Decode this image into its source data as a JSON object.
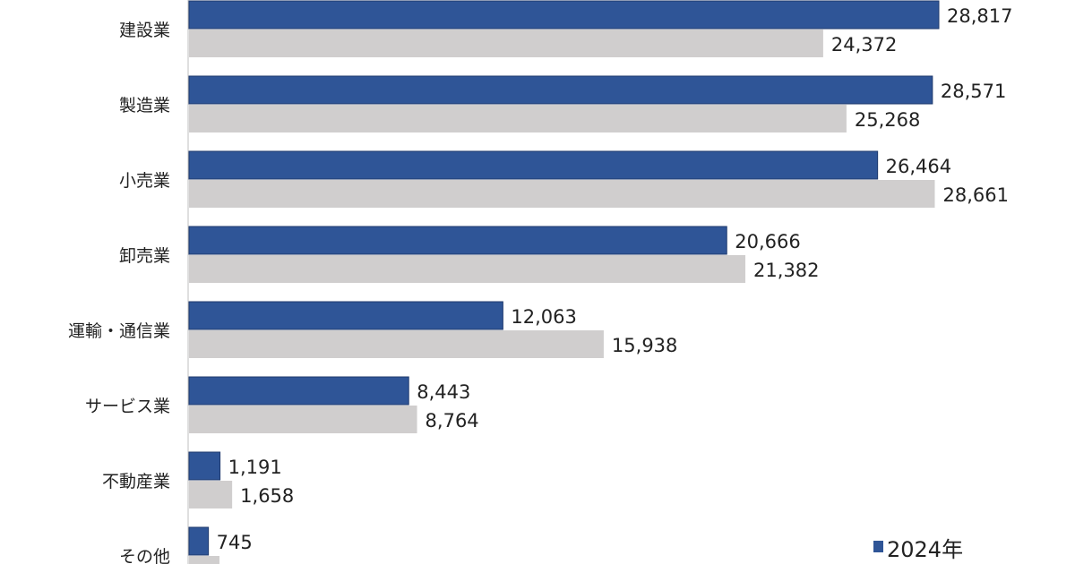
{
  "chart_data": {
    "type": "bar",
    "orientation": "horizontal",
    "categories": [
      "建設業",
      "製造業",
      "小売業",
      "卸売業",
      "運輸・通信業",
      "サービス業",
      "不動産業",
      "その他"
    ],
    "series": [
      {
        "name": "2024年",
        "color": "#2F5597",
        "values": [
          28817,
          28571,
          26464,
          20666,
          12063,
          8443,
          1191,
          745
        ]
      },
      {
        "name": "",
        "color": "#D0CECE",
        "values": [
          24372,
          25268,
          28661,
          21382,
          15938,
          8764,
          1658,
          null
        ]
      }
    ],
    "value_labels": [
      [
        "28,817",
        "28,571",
        "26,464",
        "20,666",
        "12,063",
        "8,443",
        "1,191",
        "745"
      ],
      [
        "24,372",
        "25,268",
        "28,661",
        "21,382",
        "15,938",
        "8,764",
        "1,658",
        null
      ]
    ],
    "xlim": [
      0,
      28817
    ],
    "grid": false,
    "legend": {
      "placement": "bottom-right",
      "entries": [
        "2024年"
      ]
    }
  }
}
